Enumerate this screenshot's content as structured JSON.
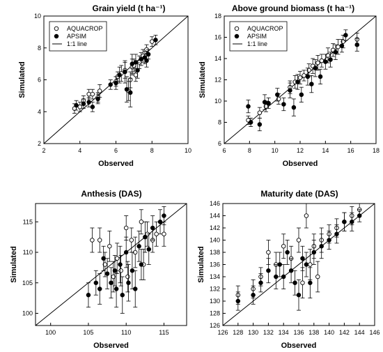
{
  "chart_data": [
    {
      "type": "scatter",
      "title": "Grain yield (t ha⁻¹)",
      "xlabel": "Observed",
      "ylabel": "Simulated",
      "xlim": [
        2,
        10
      ],
      "ylim": [
        2,
        10
      ],
      "xticks": [
        2,
        4,
        6,
        8,
        10
      ],
      "yticks": [
        2,
        4,
        6,
        8,
        10
      ],
      "grid": false,
      "legend": {
        "position": "top-left",
        "entries": [
          "AQUACROP",
          "APSIM",
          "1:1 line"
        ]
      },
      "reference_line": "1:1",
      "series": [
        {
          "name": "AQUACROP",
          "marker": "open-circle",
          "points": [
            [
              3.7,
              4.2,
              0.3
            ],
            [
              4.0,
              4.3,
              0.3
            ],
            [
              4.2,
              4.7,
              0.3
            ],
            [
              4.5,
              5.1,
              0.3
            ],
            [
              4.7,
              5.1,
              0.3
            ],
            [
              5.0,
              4.9,
              0.3
            ],
            [
              5.1,
              5.3,
              0.4
            ],
            [
              6.0,
              5.9,
              0.3
            ],
            [
              6.1,
              6.2,
              0.3
            ],
            [
              6.3,
              6.4,
              0.5
            ],
            [
              6.5,
              6.6,
              0.5
            ],
            [
              6.7,
              5.3,
              0.6
            ],
            [
              6.8,
              6.0,
              0.5
            ],
            [
              6.9,
              6.8,
              0.5
            ],
            [
              7.0,
              6.9,
              0.4
            ],
            [
              7.1,
              6.3,
              0.4
            ],
            [
              7.3,
              7.1,
              0.4
            ],
            [
              7.5,
              7.5,
              0.4
            ],
            [
              7.7,
              7.9,
              0.3
            ],
            [
              8.0,
              8.4,
              0.3
            ]
          ]
        },
        {
          "name": "APSIM",
          "marker": "filled-circle",
          "points": [
            [
              3.8,
              4.4,
              0.3
            ],
            [
              4.2,
              4.5,
              0.3
            ],
            [
              4.5,
              4.6,
              0.3
            ],
            [
              4.7,
              4.3,
              0.3
            ],
            [
              5.0,
              4.8,
              0.3
            ],
            [
              5.7,
              5.7,
              0.3
            ],
            [
              6.0,
              5.8,
              0.4
            ],
            [
              6.2,
              6.3,
              0.5
            ],
            [
              6.5,
              6.5,
              0.7
            ],
            [
              6.6,
              5.4,
              0.8
            ],
            [
              6.8,
              5.2,
              0.9
            ],
            [
              6.9,
              7.0,
              0.6
            ],
            [
              7.1,
              7.1,
              0.5
            ],
            [
              7.2,
              6.6,
              0.5
            ],
            [
              7.4,
              7.3,
              0.4
            ],
            [
              7.6,
              7.4,
              0.4
            ],
            [
              7.7,
              7.2,
              0.4
            ],
            [
              7.8,
              7.6,
              0.3
            ],
            [
              8.2,
              8.5,
              0.3
            ]
          ]
        }
      ]
    },
    {
      "type": "scatter",
      "title": "Above ground biomass (t ha⁻¹)",
      "xlabel": "Observed",
      "ylabel": "Simulated",
      "xlim": [
        6,
        18
      ],
      "ylim": [
        6,
        18
      ],
      "xticks": [
        6,
        8,
        10,
        12,
        14,
        16,
        18
      ],
      "yticks": [
        6,
        8,
        10,
        12,
        14,
        16,
        18
      ],
      "grid": false,
      "legend": {
        "position": "top-left",
        "entries": [
          "AQUACROP",
          "APSIM",
          "1:1 line"
        ]
      },
      "reference_line": "1:1",
      "series": [
        {
          "name": "AQUACROP",
          "marker": "open-circle",
          "points": [
            [
              7.9,
              8.2,
              0.4
            ],
            [
              8.8,
              8.9,
              0.5
            ],
            [
              9.3,
              9.5,
              0.5
            ],
            [
              10.3,
              10.2,
              0.5
            ],
            [
              11.2,
              11.3,
              0.6
            ],
            [
              11.6,
              11.8,
              0.6
            ],
            [
              12.0,
              12.2,
              0.6
            ],
            [
              12.3,
              12.4,
              0.5
            ],
            [
              12.7,
              12.9,
              0.6
            ],
            [
              13.0,
              13.3,
              0.7
            ],
            [
              13.4,
              13.6,
              0.7
            ],
            [
              13.7,
              13.8,
              0.6
            ],
            [
              14.2,
              14.3,
              0.7
            ],
            [
              14.6,
              14.8,
              0.6
            ],
            [
              15.0,
              15.1,
              0.7
            ],
            [
              15.4,
              15.6,
              0.6
            ],
            [
              16.5,
              15.8,
              0.6
            ]
          ]
        },
        {
          "name": "APSIM",
          "marker": "filled-circle",
          "points": [
            [
              7.9,
              9.5,
              0.6
            ],
            [
              8.1,
              8.0,
              0.4
            ],
            [
              8.8,
              7.8,
              0.6
            ],
            [
              9.2,
              9.9,
              0.7
            ],
            [
              9.5,
              9.8,
              0.5
            ],
            [
              10.2,
              10.6,
              0.6
            ],
            [
              10.7,
              9.7,
              0.6
            ],
            [
              11.2,
              11.0,
              0.7
            ],
            [
              11.5,
              9.4,
              0.8
            ],
            [
              11.8,
              11.8,
              0.7
            ],
            [
              12.1,
              10.6,
              0.7
            ],
            [
              12.6,
              12.3,
              0.8
            ],
            [
              12.9,
              11.6,
              0.8
            ],
            [
              13.2,
              13.1,
              0.8
            ],
            [
              13.6,
              12.3,
              0.7
            ],
            [
              14.0,
              13.7,
              0.7
            ],
            [
              14.4,
              13.9,
              0.7
            ],
            [
              14.8,
              14.6,
              0.7
            ],
            [
              15.3,
              15.2,
              0.6
            ],
            [
              15.6,
              16.2,
              0.5
            ],
            [
              16.5,
              15.3,
              0.6
            ]
          ]
        }
      ]
    },
    {
      "type": "scatter",
      "title": "Anthesis (DAS)",
      "xlabel": "Observed",
      "ylabel": "Simulated",
      "xlim": [
        98,
        118
      ],
      "ylim": [
        98,
        118
      ],
      "xticks": [
        100,
        105,
        110,
        115
      ],
      "yticks": [
        100,
        105,
        110,
        115
      ],
      "grid": false,
      "reference_line": "1:1",
      "series": [
        {
          "name": "AQUACROP",
          "marker": "open-circle",
          "points": [
            [
              105.5,
              112.0,
              2.0
            ],
            [
              106.5,
              112.0,
              2.0
            ],
            [
              107.2,
              108.0,
              2.0
            ],
            [
              107.8,
              111.0,
              2.5
            ],
            [
              108.3,
              106.0,
              2.5
            ],
            [
              108.8,
              109.0,
              2.5
            ],
            [
              109.3,
              107.0,
              2.5
            ],
            [
              110.0,
              114.0,
              2.0
            ],
            [
              110.2,
              106.0,
              2.5
            ],
            [
              110.7,
              112.0,
              2.0
            ],
            [
              111.2,
              110.0,
              2.5
            ],
            [
              112.0,
              115.0,
              2.0
            ],
            [
              112.3,
              108.0,
              2.5
            ],
            [
              112.8,
              113.0,
              2.0
            ],
            [
              113.5,
              112.0,
              2.0
            ],
            [
              114.0,
              113.0,
              2.0
            ],
            [
              115.0,
              113.0,
              2.0
            ]
          ]
        },
        {
          "name": "APSIM",
          "marker": "filled-circle",
          "points": [
            [
              105.0,
              103.0,
              2.0
            ],
            [
              106.0,
              105.0,
              2.0
            ],
            [
              106.5,
              104.0,
              2.5
            ],
            [
              107.0,
              109.0,
              2.0
            ],
            [
              107.5,
              106.5,
              2.5
            ],
            [
              108.0,
              105.0,
              2.5
            ],
            [
              108.5,
              107.0,
              2.5
            ],
            [
              108.7,
              104.0,
              3.0
            ],
            [
              109.2,
              108.0,
              3.0
            ],
            [
              109.5,
              103.0,
              3.0
            ],
            [
              110.0,
              110.0,
              2.5
            ],
            [
              110.3,
              105.0,
              3.0
            ],
            [
              110.8,
              107.0,
              3.0
            ],
            [
              111.2,
              104.0,
              3.0
            ],
            [
              111.7,
              111.0,
              2.5
            ],
            [
              112.0,
              108.0,
              2.5
            ],
            [
              112.5,
              112.5,
              2.5
            ],
            [
              113.0,
              110.5,
              2.5
            ],
            [
              113.5,
              114.0,
              2.0
            ],
            [
              114.5,
              115.0,
              2.0
            ],
            [
              115.0,
              116.0,
              1.5
            ]
          ]
        }
      ]
    },
    {
      "type": "scatter",
      "title": "Maturity date (DAS)",
      "xlabel": "Observed",
      "ylabel": "Simulated",
      "xlim": [
        126,
        146
      ],
      "ylim": [
        126,
        146
      ],
      "xticks": [
        126,
        128,
        130,
        132,
        134,
        136,
        138,
        140,
        142,
        144,
        146
      ],
      "yticks": [
        126,
        128,
        130,
        132,
        134,
        136,
        138,
        140,
        142,
        144,
        146
      ],
      "grid": false,
      "reference_line": "1:1",
      "series": [
        {
          "name": "AQUACROP",
          "marker": "open-circle",
          "points": [
            [
              128.0,
              131.0,
              1.5
            ],
            [
              130.0,
              132.0,
              1.5
            ],
            [
              131.0,
              134.0,
              1.5
            ],
            [
              132.0,
              138.0,
              2.0
            ],
            [
              133.0,
              136.0,
              2.0
            ],
            [
              134.0,
              139.0,
              2.0
            ],
            [
              135.0,
              137.0,
              2.0
            ],
            [
              136.0,
              140.0,
              2.0
            ],
            [
              136.5,
              133.0,
              2.5
            ],
            [
              137.0,
              144.0,
              2.0
            ],
            [
              137.5,
              136.0,
              2.5
            ],
            [
              138.0,
              139.0,
              2.0
            ],
            [
              138.5,
              134.0,
              2.5
            ],
            [
              139.0,
              140.0,
              2.0
            ],
            [
              140.0,
              141.0,
              1.5
            ],
            [
              141.0,
              142.0,
              1.5
            ],
            [
              142.0,
              143.0,
              1.5
            ],
            [
              143.0,
              144.0,
              1.5
            ],
            [
              144.0,
              145.0,
              1.0
            ]
          ]
        },
        {
          "name": "APSIM",
          "marker": "filled-circle",
          "points": [
            [
              128.0,
              130.0,
              1.5
            ],
            [
              130.0,
              131.0,
              1.5
            ],
            [
              131.0,
              133.0,
              1.5
            ],
            [
              132.0,
              135.0,
              2.0
            ],
            [
              133.0,
              134.0,
              2.0
            ],
            [
              133.5,
              136.0,
              2.0
            ],
            [
              134.0,
              134.0,
              2.0
            ],
            [
              134.5,
              138.0,
              2.0
            ],
            [
              135.0,
              135.0,
              2.0
            ],
            [
              135.5,
              133.0,
              2.0
            ],
            [
              136.0,
              131.0,
              2.5
            ],
            [
              136.5,
              137.0,
              2.0
            ],
            [
              137.0,
              136.0,
              2.0
            ],
            [
              137.5,
              133.0,
              2.5
            ],
            [
              138.0,
              138.0,
              2.0
            ],
            [
              139.0,
              139.0,
              2.0
            ],
            [
              140.0,
              140.0,
              1.5
            ],
            [
              141.0,
              141.0,
              1.5
            ],
            [
              142.0,
              143.0,
              1.5
            ],
            [
              143.0,
              143.0,
              1.5
            ],
            [
              144.0,
              144.0,
              1.0
            ]
          ]
        }
      ]
    }
  ]
}
